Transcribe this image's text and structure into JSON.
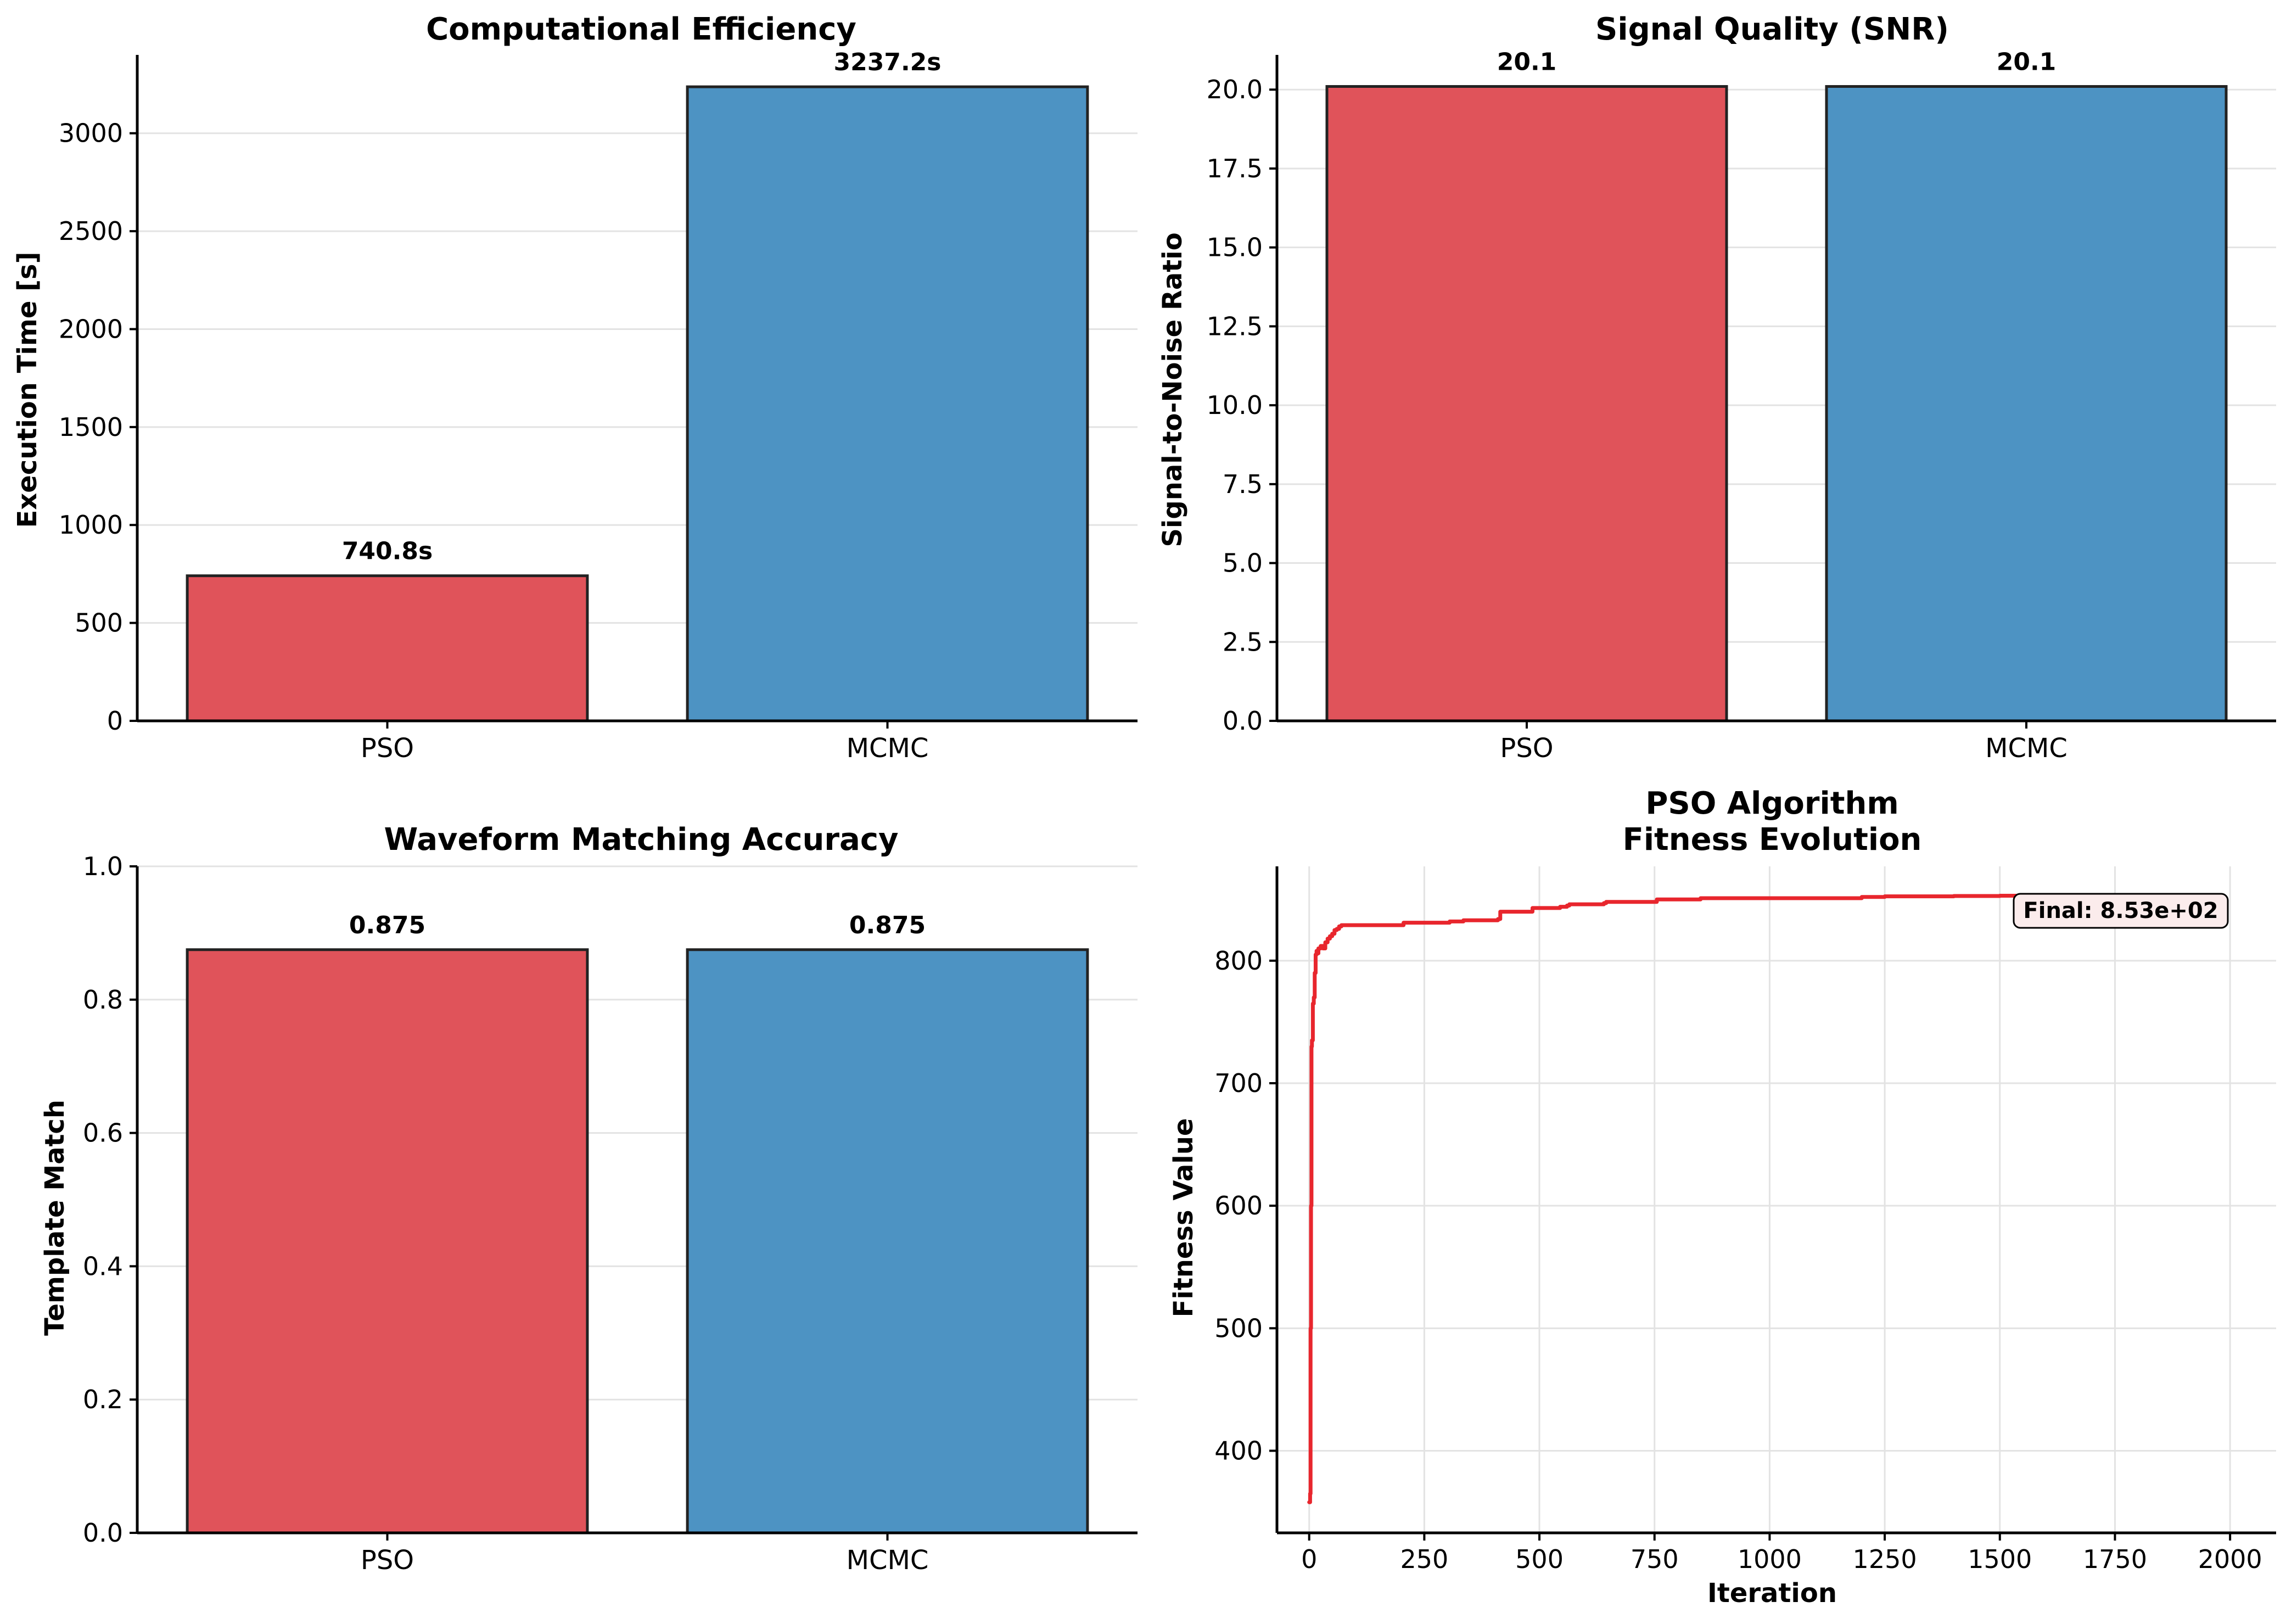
{
  "chart_data": [
    {
      "type": "bar",
      "title": "Computational Efficiency",
      "xlabel": "",
      "ylabel": "Execution Time [s]",
      "categories": [
        "PSO",
        "MCMC"
      ],
      "values": [
        740.8,
        3237.2
      ],
      "value_labels": [
        "740.8s",
        "3237.2s"
      ],
      "colors": [
        "#e0535a",
        "#4d93c3"
      ],
      "ylim": [
        0,
        3400
      ],
      "yticks": [
        0,
        500,
        1000,
        1500,
        2000,
        2500,
        3000
      ],
      "ytick_labels": [
        "0",
        "500",
        "1000",
        "1500",
        "2000",
        "2500",
        "3000"
      ],
      "grid": "y"
    },
    {
      "type": "bar",
      "title": "Signal Quality (SNR)",
      "xlabel": "",
      "ylabel": "Signal-to-Noise Ratio",
      "categories": [
        "PSO",
        "MCMC"
      ],
      "values": [
        20.1,
        20.1
      ],
      "value_labels": [
        "20.1",
        "20.1"
      ],
      "colors": [
        "#e0535a",
        "#4d93c3"
      ],
      "ylim": [
        0,
        21.1
      ],
      "yticks": [
        0,
        2.5,
        5,
        7.5,
        10,
        12.5,
        15,
        17.5,
        20
      ],
      "ytick_labels": [
        "0.0",
        "2.5",
        "5.0",
        "7.5",
        "10.0",
        "12.5",
        "15.0",
        "17.5",
        "20.0"
      ],
      "grid": "y"
    },
    {
      "type": "bar",
      "title": "Waveform Matching Accuracy",
      "xlabel": "",
      "ylabel": "Template Match",
      "categories": [
        "PSO",
        "MCMC"
      ],
      "values": [
        0.875,
        0.875
      ],
      "value_labels": [
        "0.875",
        "0.875"
      ],
      "colors": [
        "#e0535a",
        "#4d93c3"
      ],
      "ylim": [
        0,
        1.0
      ],
      "yticks": [
        0,
        0.2,
        0.4,
        0.6,
        0.8,
        1.0
      ],
      "ytick_labels": [
        "0.0",
        "0.2",
        "0.4",
        "0.6",
        "0.8",
        "1.0"
      ],
      "grid": "y"
    },
    {
      "type": "line",
      "title_lines": [
        "PSO Algorithm",
        "Fitness Evolution"
      ],
      "xlabel": "Iteration",
      "ylabel": "Fitness Value",
      "x": [
        0,
        2,
        3,
        4,
        5,
        6,
        8,
        10,
        12,
        14,
        16,
        18,
        20,
        25,
        30,
        35,
        40,
        45,
        50,
        55,
        60,
        65,
        70,
        200,
        205,
        300,
        305,
        330,
        335,
        410,
        415,
        480,
        485,
        540,
        545,
        560,
        565,
        640,
        645,
        750,
        755,
        850,
        1000,
        1100,
        1200,
        1250,
        1300,
        1400,
        1500,
        1560
      ],
      "y": [
        358,
        365,
        500,
        600,
        730,
        735,
        765,
        770,
        790,
        805,
        808,
        806,
        810,
        812,
        810,
        815,
        818,
        820,
        822,
        825,
        826,
        828,
        829,
        829,
        831,
        831,
        832,
        832,
        833,
        834,
        840,
        840,
        843,
        843,
        844,
        845,
        846,
        847,
        848,
        848,
        850,
        851,
        851,
        851,
        852,
        852.5,
        852.5,
        852.8,
        853,
        853
      ],
      "color": "#e8262d",
      "xlim": [
        -70,
        2100
      ],
      "ylim": [
        333,
        877
      ],
      "xticks": [
        0,
        250,
        500,
        750,
        1000,
        1250,
        1500,
        1750,
        2000
      ],
      "xtick_labels": [
        "0",
        "250",
        "500",
        "750",
        "1000",
        "1250",
        "1500",
        "1750",
        "2000"
      ],
      "yticks": [
        400,
        500,
        600,
        700,
        800
      ],
      "ytick_labels": [
        "400",
        "500",
        "600",
        "700",
        "800"
      ],
      "grid": "both",
      "annotation": "Final: 8.53e+02"
    }
  ]
}
